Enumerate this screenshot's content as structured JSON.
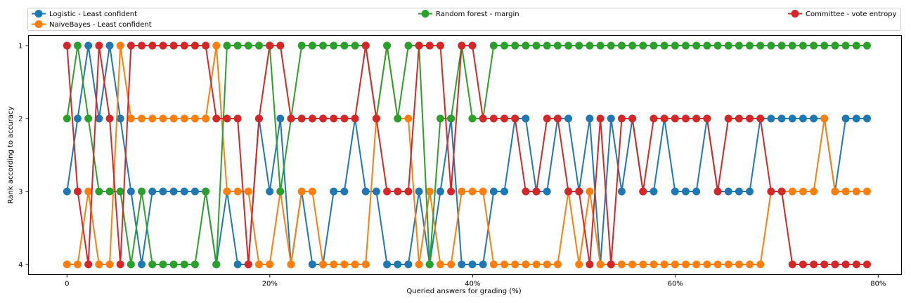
{
  "chart_data": {
    "type": "line",
    "xlabel": "Queried answers for grading (%)",
    "ylabel": "Rank according to accuracy",
    "x_tick_labels": [
      "0",
      "20%",
      "40%",
      "60%",
      "80%"
    ],
    "x_ticks": [
      0,
      20,
      40,
      60,
      80
    ],
    "y_ticks": [
      1,
      2,
      3,
      4
    ],
    "y_tick_labels": [
      "1",
      "2",
      "3",
      "4"
    ],
    "xlim": [
      -3.8,
      82.3
    ],
    "ylim": [
      4.14,
      0.86
    ],
    "y_inverted": true,
    "grid": false,
    "legend_position": "top (outside plot, 3 columns)",
    "x_start": 0,
    "x_step": 1.052,
    "n_points": 76,
    "series": [
      {
        "name": "Logistic - Least confident",
        "color": "#1f77b4",
        "values": [
          3,
          2,
          1,
          2,
          1,
          2,
          3,
          4,
          3,
          3,
          3,
          3,
          3,
          3,
          4,
          3,
          4,
          4,
          2,
          3,
          2,
          4,
          3,
          4,
          4,
          3,
          3,
          2,
          3,
          3,
          4,
          4,
          4,
          3,
          4,
          3,
          2,
          4,
          4,
          4,
          3,
          3,
          2,
          2,
          3,
          3,
          2,
          2,
          3,
          2,
          4,
          2,
          3,
          2,
          3,
          3,
          2,
          3,
          3,
          3,
          2,
          3,
          3,
          3,
          3,
          2,
          2,
          2,
          2,
          2,
          2,
          2,
          3,
          2,
          2,
          2
        ]
      },
      {
        "name": "NaiveBayes - Least confident",
        "color": "#ff7f0e",
        "values": [
          4,
          4,
          3,
          4,
          4,
          1,
          2,
          2,
          2,
          2,
          2,
          2,
          2,
          2,
          1,
          3,
          3,
          3,
          4,
          4,
          3,
          4,
          3,
          3,
          4,
          4,
          4,
          4,
          4,
          2,
          1,
          2,
          2,
          4,
          3,
          4,
          4,
          3,
          3,
          3,
          4,
          4,
          4,
          4,
          4,
          4,
          4,
          3,
          4,
          3,
          4,
          4,
          4,
          4,
          4,
          4,
          4,
          4,
          4,
          4,
          4,
          4,
          4,
          4,
          4,
          4,
          3,
          3,
          3,
          3,
          3,
          2,
          3,
          3,
          3,
          3
        ]
      },
      {
        "name": "Random forest - margin",
        "color": "#2ca02c",
        "values": [
          2,
          1,
          2,
          3,
          3,
          3,
          4,
          3,
          4,
          4,
          4,
          4,
          4,
          3,
          4,
          1,
          1,
          1,
          1,
          1,
          3,
          2,
          1,
          1,
          1,
          1,
          1,
          1,
          1,
          2,
          1,
          2,
          1,
          1,
          4,
          2,
          2,
          1,
          2,
          2,
          1,
          1,
          1,
          1,
          1,
          1,
          1,
          1,
          1,
          1,
          1,
          1,
          1,
          1,
          1,
          1,
          1,
          1,
          1,
          1,
          1,
          1,
          1,
          1,
          1,
          1,
          1,
          1,
          1,
          1,
          1,
          1,
          1,
          1,
          1,
          1
        ]
      },
      {
        "name": "Committee - vote entropy",
        "color": "#d62728",
        "values": [
          1,
          3,
          4,
          1,
          2,
          4,
          1,
          1,
          1,
          1,
          1,
          1,
          1,
          1,
          2,
          2,
          2,
          4,
          2,
          1,
          1,
          2,
          2,
          2,
          2,
          2,
          2,
          2,
          1,
          2,
          3,
          3,
          3,
          1,
          1,
          1,
          3,
          1,
          1,
          2,
          2,
          2,
          2,
          3,
          3,
          2,
          2,
          3,
          3,
          4,
          2,
          4,
          2,
          2,
          3,
          2,
          2,
          2,
          2,
          2,
          2,
          3,
          2,
          2,
          2,
          2,
          3,
          3,
          4,
          4,
          4,
          4,
          4,
          4,
          4,
          4
        ]
      }
    ]
  }
}
